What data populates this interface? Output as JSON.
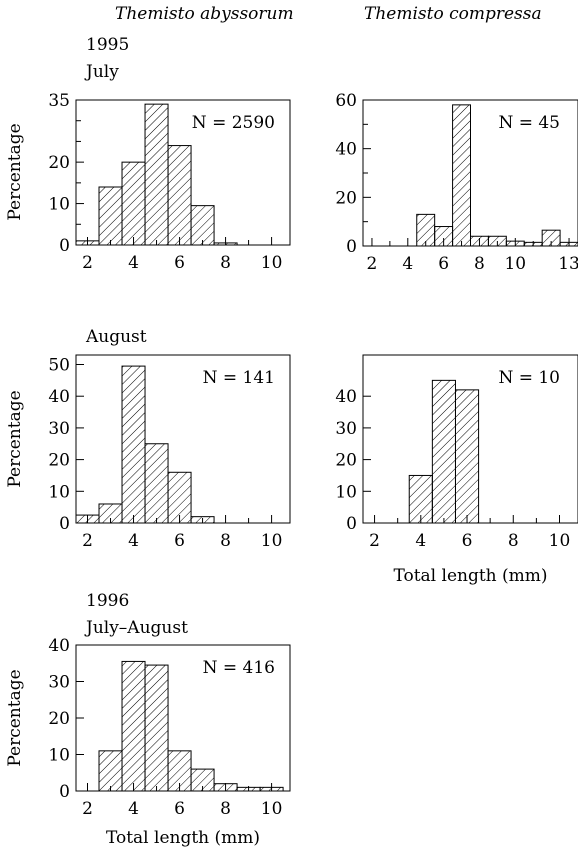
{
  "headers": {
    "col_left": "Themisto abyssorum",
    "col_right": "Themisto compressa",
    "year_1995": "1995",
    "month_july": "July",
    "month_august": "August",
    "year_1996": "1996",
    "month_july_august": "July–August"
  },
  "hatch_color": "#000000",
  "chart_data": [
    {
      "id": "abyssorum-1995-july",
      "type": "bar",
      "ylabel": "Percentage",
      "xlabel": "",
      "annotation": "N = 2590",
      "xlim": [
        1.5,
        10.8
      ],
      "ylim": [
        0,
        35
      ],
      "xticks": [
        2,
        4,
        6,
        8,
        10
      ],
      "xticks_minor": [
        3,
        5,
        7,
        9
      ],
      "yticks": [
        0,
        10,
        20,
        35
      ],
      "yticks_minor": [
        5,
        15,
        25,
        30
      ],
      "bin_width": 1,
      "bins": [
        1.5,
        2.5,
        3.5,
        4.5,
        5.5,
        6.5,
        7.5
      ],
      "values": [
        1,
        14,
        20,
        34,
        24,
        9.5,
        0.5
      ]
    },
    {
      "id": "compressa-1995-july",
      "type": "bar",
      "ylabel": "",
      "xlabel": "",
      "annotation": "N = 45",
      "xlim": [
        1.5,
        13.5
      ],
      "ylim": [
        0,
        60
      ],
      "xticks": [
        2,
        4,
        6,
        8,
        10,
        13
      ],
      "xticks_minor": [
        3,
        5,
        7,
        9,
        11,
        12
      ],
      "yticks": [
        0,
        20,
        40,
        60
      ],
      "yticks_minor": [
        10,
        30,
        50
      ],
      "bin_width": 1,
      "bins": [
        4.5,
        5.5,
        6.5,
        7.5,
        8.5,
        9.5,
        10.5,
        11.5,
        12.5
      ],
      "values": [
        13,
        8,
        58,
        4,
        4,
        2,
        1.5,
        6.5,
        1.5
      ]
    },
    {
      "id": "abyssorum-1995-august",
      "type": "bar",
      "ylabel": "Percentage",
      "xlabel": "",
      "annotation": "N = 141",
      "xlim": [
        1.5,
        10.8
      ],
      "ylim": [
        0,
        53
      ],
      "xticks": [
        2,
        4,
        6,
        8,
        10
      ],
      "xticks_minor": [
        3,
        5,
        7,
        9
      ],
      "yticks": [
        0,
        10,
        20,
        30,
        40,
        50
      ],
      "yticks_minor": [],
      "bin_width": 1,
      "bins": [
        1.5,
        2.5,
        3.5,
        4.5,
        5.5,
        6.5
      ],
      "values": [
        2.5,
        6,
        49.5,
        25,
        16,
        2
      ]
    },
    {
      "id": "compressa-1995-august",
      "type": "bar",
      "ylabel": "",
      "xlabel": "Total length (mm)",
      "annotation": "N = 10",
      "xlim": [
        1.5,
        10.8
      ],
      "ylim": [
        0,
        53
      ],
      "xticks": [
        2,
        4,
        6,
        8,
        10
      ],
      "xticks_minor": [
        3,
        5,
        7,
        9
      ],
      "yticks": [
        0,
        10,
        20,
        30,
        40
      ],
      "yticks_minor": [],
      "bin_width": 1,
      "bins": [
        3.5,
        4.5,
        5.5
      ],
      "values": [
        15,
        45,
        42
      ]
    },
    {
      "id": "abyssorum-1996-july-august",
      "type": "bar",
      "ylabel": "Percentage",
      "xlabel": "Total length (mm)",
      "annotation": "N = 416",
      "xlim": [
        1.5,
        10.8
      ],
      "ylim": [
        0,
        40
      ],
      "xticks": [
        2,
        4,
        6,
        8,
        10
      ],
      "xticks_minor": [
        3,
        5,
        7,
        9
      ],
      "yticks": [
        0,
        10,
        20,
        30,
        40
      ],
      "yticks_minor": [],
      "bin_width": 1,
      "bins": [
        2.5,
        3.5,
        4.5,
        5.5,
        6.5,
        7.5,
        8.5,
        9.5
      ],
      "values": [
        11,
        35.5,
        34.5,
        11,
        6,
        2,
        1,
        1
      ]
    }
  ]
}
